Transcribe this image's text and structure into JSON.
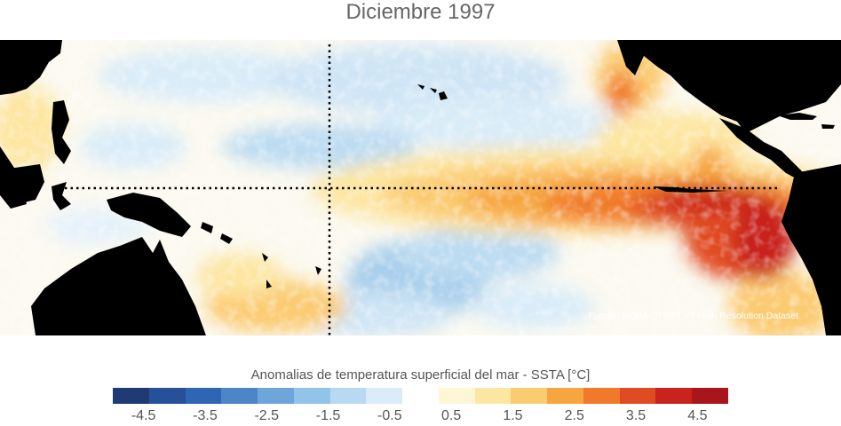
{
  "title": "Diciembre 1997",
  "source": "Fuente: NOAA OI SST V2 High Resolution Dataset",
  "colorbar": {
    "label": "Anomalias de temperatura superficial del mar - SSTA  [°C]",
    "min": -5,
    "max": 5,
    "colors": [
      "#1f3b73",
      "#27509b",
      "#2f66b4",
      "#4a86c8",
      "#6fa6d9",
      "#92c3e8",
      "#b7d9f1",
      "#d9ecf8",
      "#ffffff",
      "#fff6d5",
      "#fde6a2",
      "#fbcb72",
      "#f7a540",
      "#f07a2a",
      "#e04c22",
      "#c8241d",
      "#a8151a"
    ],
    "tick_values": [
      -4.5,
      -3.5,
      -2.5,
      -1.5,
      -0.5,
      0.5,
      1.5,
      2.5,
      3.5,
      4.5
    ],
    "tick_labels": [
      "-4.5",
      "-3.5",
      "-2.5",
      "-1.5",
      "-0.5",
      "0.5",
      "1.5",
      "2.5",
      "3.5",
      "4.5"
    ]
  },
  "map": {
    "land_color": "#000000",
    "reference_lines": "dotted equator and dateline"
  }
}
